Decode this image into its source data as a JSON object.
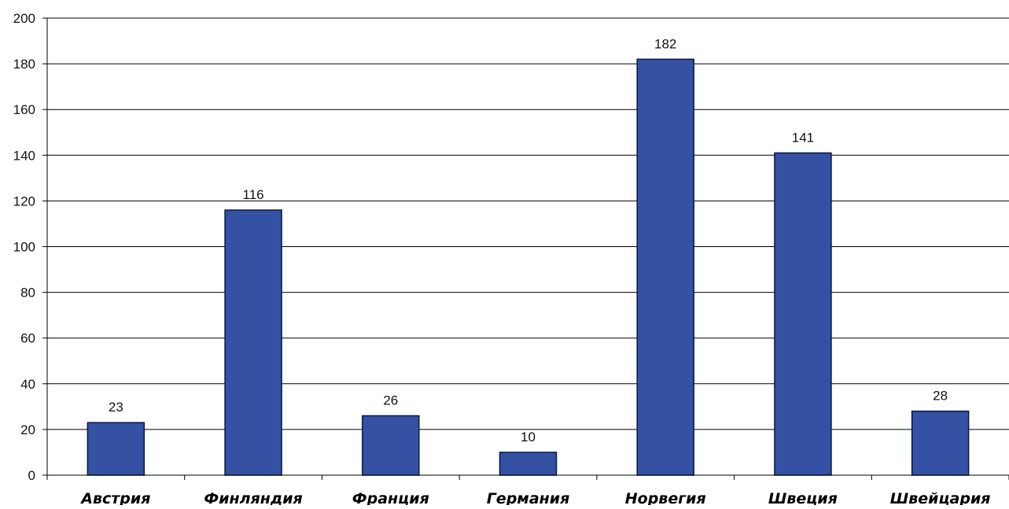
{
  "chart_data": {
    "type": "bar",
    "title": "",
    "xlabel": "",
    "ylabel": "",
    "categories": [
      "Австрия",
      "Финляндия",
      "Франция",
      "Германия",
      "Норвегия",
      "Швеция",
      "Швейцария"
    ],
    "values": [
      23,
      116,
      26,
      10,
      182,
      141,
      28
    ],
    "data_labels": [
      "23",
      "116",
      "26",
      "10",
      "182",
      "141",
      "28"
    ],
    "ylim": [
      0,
      200
    ],
    "yticks": [
      0,
      20,
      40,
      60,
      80,
      100,
      120,
      140,
      160,
      180,
      200
    ],
    "ytick_labels": [
      "0",
      "20",
      "40",
      "60",
      "80",
      "100",
      "120",
      "140",
      "160",
      "180",
      "200"
    ],
    "grid": true,
    "legend": "none",
    "bar_color": "#3451a3",
    "bar_edge_color": "#0a1a40",
    "grid_color": "#000000"
  }
}
